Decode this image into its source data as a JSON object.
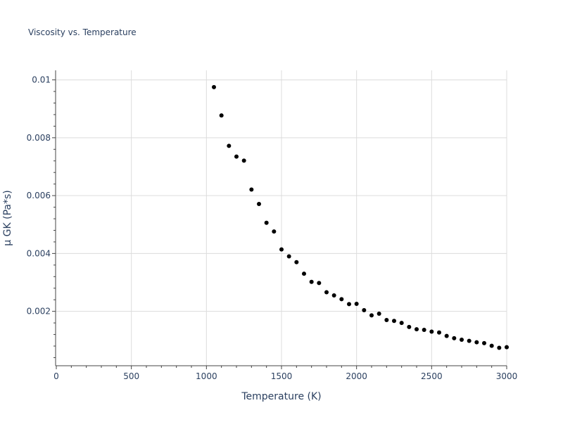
{
  "chart_data": {
    "type": "scatter",
    "title": "Viscosity vs. Temperature",
    "xlabel": "Temperature (K)",
    "ylabel": "μ GK (Pa*s)",
    "xlim": [
      0,
      3000
    ],
    "ylim": [
      0.00012,
      0.01033
    ],
    "x_ticks": [
      {
        "value": 0,
        "label": "0"
      },
      {
        "value": 500,
        "label": "500"
      },
      {
        "value": 1000,
        "label": "1000"
      },
      {
        "value": 1500,
        "label": "1500"
      },
      {
        "value": 2000,
        "label": "2000"
      },
      {
        "value": 2500,
        "label": "2500"
      },
      {
        "value": 3000,
        "label": "3000"
      }
    ],
    "y_ticks": [
      {
        "value": 0.002,
        "label": "0.002"
      },
      {
        "value": 0.004,
        "label": "0.004"
      },
      {
        "value": 0.006,
        "label": "0.006"
      },
      {
        "value": 0.008,
        "label": "0.008"
      },
      {
        "value": 0.01,
        "label": "0.01"
      }
    ],
    "x_minor_step": 100,
    "y_minor_step": 0.0004,
    "grid": true,
    "legend": false,
    "series": [
      {
        "name": "μ GK",
        "color": "#000000",
        "x": [
          1050,
          1100,
          1150,
          1200,
          1250,
          1300,
          1350,
          1400,
          1450,
          1500,
          1550,
          1600,
          1650,
          1700,
          1750,
          1800,
          1850,
          1900,
          1950,
          2000,
          2050,
          2100,
          2150,
          2200,
          2250,
          2300,
          2350,
          2400,
          2450,
          2500,
          2550,
          2600,
          2650,
          2700,
          2750,
          2800,
          2850,
          2900,
          2950,
          3000
        ],
        "y": [
          0.00975,
          0.00877,
          0.00772,
          0.00735,
          0.00721,
          0.00621,
          0.00571,
          0.00506,
          0.00476,
          0.00414,
          0.0039,
          0.0037,
          0.0033,
          0.00302,
          0.00298,
          0.00266,
          0.00255,
          0.00242,
          0.00225,
          0.00226,
          0.00204,
          0.00186,
          0.00192,
          0.0017,
          0.00167,
          0.0016,
          0.00146,
          0.00138,
          0.00136,
          0.0013,
          0.00127,
          0.00115,
          0.00107,
          0.00102,
          0.00098,
          0.00093,
          0.0009,
          0.00081,
          0.00074,
          0.00076
        ]
      }
    ]
  }
}
